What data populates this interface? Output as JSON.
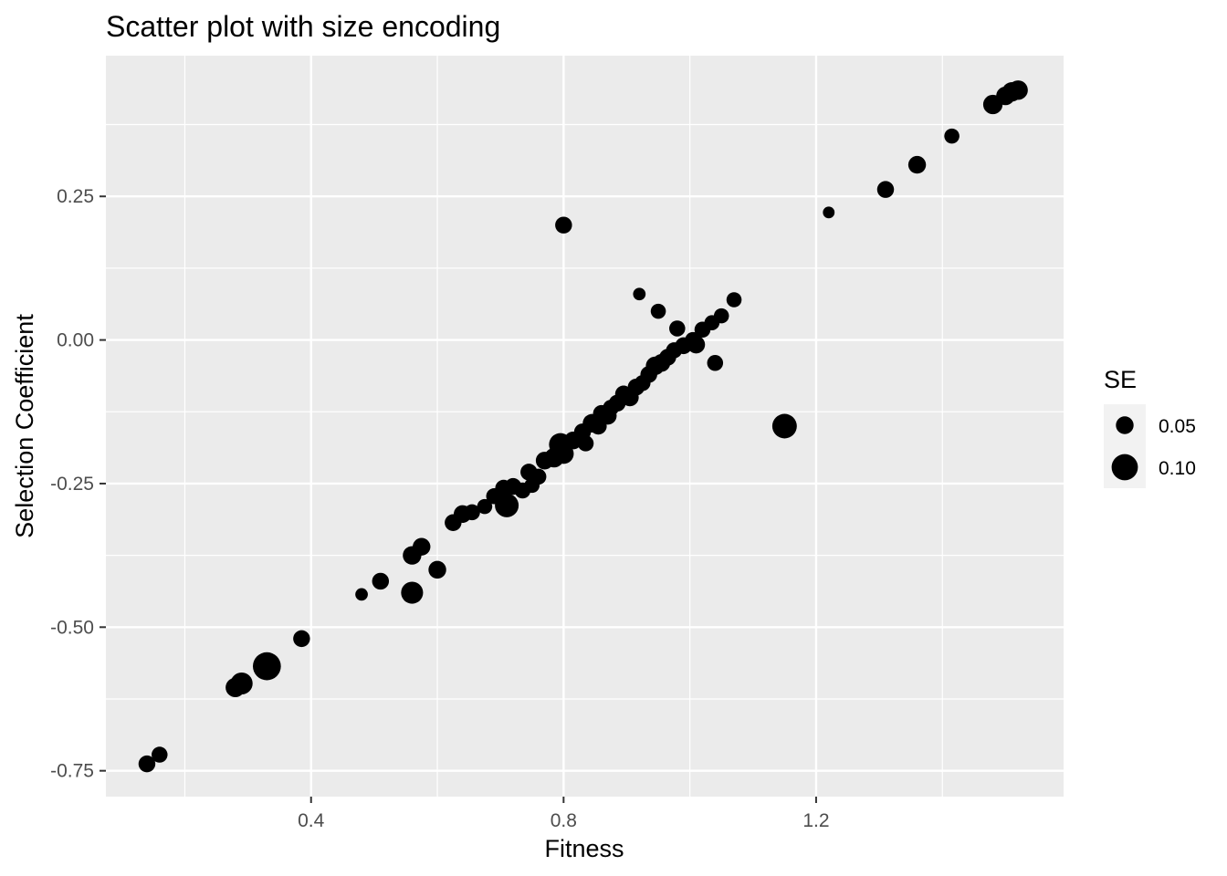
{
  "chart_data": {
    "type": "scatter",
    "title": "Scatter plot with size encoding",
    "xlabel": "Fitness",
    "ylabel": "Selection Coefficient",
    "xlim": [
      0.075,
      1.592
    ],
    "ylim": [
      -0.795,
      0.495
    ],
    "x_ticks": [
      0.4,
      0.8,
      1.2
    ],
    "x_tick_labels": [
      "0.4",
      "0.8",
      "1.2"
    ],
    "x_minor_ticks": [
      0.2,
      0.6,
      1.0,
      1.4
    ],
    "y_ticks": [
      -0.75,
      -0.5,
      -0.25,
      0.0,
      0.25
    ],
    "y_tick_labels": [
      "-0.75",
      "-0.50",
      "-0.25",
      "0.00",
      "0.25"
    ],
    "y_minor_ticks": [
      -0.625,
      -0.375,
      -0.125,
      0.125,
      0.375
    ],
    "grid": true,
    "panel_background": "#ebebeb",
    "point_color": "#000000",
    "size_legend": {
      "title": "SE",
      "position": "right",
      "entries": [
        {
          "label": "0.05",
          "value": 0.05
        },
        {
          "label": "0.10",
          "value": 0.1
        }
      ]
    },
    "points": [
      {
        "x": 0.14,
        "y": -0.738,
        "se": 0.045
      },
      {
        "x": 0.16,
        "y": -0.722,
        "se": 0.04
      },
      {
        "x": 0.28,
        "y": -0.605,
        "se": 0.06
      },
      {
        "x": 0.29,
        "y": -0.598,
        "se": 0.075
      },
      {
        "x": 0.33,
        "y": -0.568,
        "se": 0.11
      },
      {
        "x": 0.385,
        "y": -0.52,
        "se": 0.045
      },
      {
        "x": 0.48,
        "y": -0.443,
        "se": 0.02
      },
      {
        "x": 0.51,
        "y": -0.42,
        "se": 0.045
      },
      {
        "x": 0.56,
        "y": -0.44,
        "se": 0.075
      },
      {
        "x": 0.56,
        "y": -0.375,
        "se": 0.055
      },
      {
        "x": 0.575,
        "y": -0.36,
        "se": 0.05
      },
      {
        "x": 0.6,
        "y": -0.4,
        "se": 0.05
      },
      {
        "x": 0.625,
        "y": -0.318,
        "se": 0.045
      },
      {
        "x": 0.64,
        "y": -0.303,
        "se": 0.05
      },
      {
        "x": 0.655,
        "y": -0.3,
        "se": 0.04
      },
      {
        "x": 0.675,
        "y": -0.29,
        "se": 0.035
      },
      {
        "x": 0.69,
        "y": -0.272,
        "se": 0.04
      },
      {
        "x": 0.705,
        "y": -0.258,
        "se": 0.045
      },
      {
        "x": 0.71,
        "y": -0.288,
        "se": 0.085
      },
      {
        "x": 0.72,
        "y": -0.255,
        "se": 0.045
      },
      {
        "x": 0.735,
        "y": -0.262,
        "se": 0.04
      },
      {
        "x": 0.745,
        "y": -0.23,
        "se": 0.045
      },
      {
        "x": 0.75,
        "y": -0.253,
        "se": 0.035
      },
      {
        "x": 0.76,
        "y": -0.238,
        "se": 0.04
      },
      {
        "x": 0.77,
        "y": -0.21,
        "se": 0.05
      },
      {
        "x": 0.785,
        "y": -0.205,
        "se": 0.06
      },
      {
        "x": 0.795,
        "y": -0.182,
        "se": 0.08
      },
      {
        "x": 0.8,
        "y": -0.198,
        "se": 0.065
      },
      {
        "x": 0.8,
        "y": 0.2,
        "se": 0.045
      },
      {
        "x": 0.815,
        "y": -0.175,
        "se": 0.05
      },
      {
        "x": 0.83,
        "y": -0.16,
        "se": 0.045
      },
      {
        "x": 0.835,
        "y": -0.18,
        "se": 0.04
      },
      {
        "x": 0.845,
        "y": -0.145,
        "se": 0.055
      },
      {
        "x": 0.855,
        "y": -0.15,
        "se": 0.045
      },
      {
        "x": 0.86,
        "y": -0.128,
        "se": 0.045
      },
      {
        "x": 0.87,
        "y": -0.132,
        "se": 0.05
      },
      {
        "x": 0.875,
        "y": -0.118,
        "se": 0.04
      },
      {
        "x": 0.885,
        "y": -0.11,
        "se": 0.045
      },
      {
        "x": 0.895,
        "y": -0.094,
        "se": 0.045
      },
      {
        "x": 0.905,
        "y": -0.1,
        "se": 0.05
      },
      {
        "x": 0.915,
        "y": -0.082,
        "se": 0.045
      },
      {
        "x": 0.92,
        "y": 0.08,
        "se": 0.02
      },
      {
        "x": 0.925,
        "y": -0.075,
        "se": 0.04
      },
      {
        "x": 0.935,
        "y": -0.06,
        "se": 0.045
      },
      {
        "x": 0.945,
        "y": -0.045,
        "se": 0.055
      },
      {
        "x": 0.95,
        "y": 0.05,
        "se": 0.035
      },
      {
        "x": 0.955,
        "y": -0.04,
        "se": 0.05
      },
      {
        "x": 0.965,
        "y": -0.03,
        "se": 0.045
      },
      {
        "x": 0.975,
        "y": -0.018,
        "se": 0.04
      },
      {
        "x": 0.98,
        "y": 0.02,
        "se": 0.04
      },
      {
        "x": 0.99,
        "y": -0.01,
        "se": 0.045
      },
      {
        "x": 1.005,
        "y": 0.0,
        "se": 0.04
      },
      {
        "x": 1.01,
        "y": -0.008,
        "se": 0.05
      },
      {
        "x": 1.02,
        "y": 0.018,
        "se": 0.04
      },
      {
        "x": 1.035,
        "y": 0.03,
        "se": 0.035
      },
      {
        "x": 1.04,
        "y": -0.04,
        "se": 0.04
      },
      {
        "x": 1.05,
        "y": 0.042,
        "se": 0.035
      },
      {
        "x": 1.07,
        "y": 0.07,
        "se": 0.035
      },
      {
        "x": 1.15,
        "y": -0.15,
        "se": 0.09
      },
      {
        "x": 1.22,
        "y": 0.222,
        "se": 0.015
      },
      {
        "x": 1.31,
        "y": 0.262,
        "se": 0.045
      },
      {
        "x": 1.36,
        "y": 0.305,
        "se": 0.05
      },
      {
        "x": 1.415,
        "y": 0.355,
        "se": 0.035
      },
      {
        "x": 1.48,
        "y": 0.41,
        "se": 0.06
      },
      {
        "x": 1.5,
        "y": 0.425,
        "se": 0.055
      },
      {
        "x": 1.51,
        "y": 0.432,
        "se": 0.06
      },
      {
        "x": 1.52,
        "y": 0.435,
        "se": 0.06
      }
    ]
  }
}
